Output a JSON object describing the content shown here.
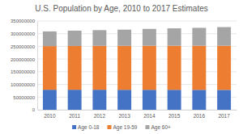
{
  "chart_data": {
    "type": "bar",
    "title": "U.S. Population by Age, 2010 to 2017 Estimates",
    "categories": [
      "2010",
      "2011",
      "2012",
      "2013",
      "2014",
      "2015",
      "2016",
      "2017"
    ],
    "series": [
      {
        "name": "Age 0-18",
        "color": "#4472c4",
        "values": [
          79000000,
          79000000,
          79000000,
          78800000,
          78800000,
          78700000,
          78600000,
          78500000
        ]
      },
      {
        "name": "Age 19-59",
        "color": "#ed7d31",
        "values": [
          172000000,
          172500000,
          173000000,
          173200000,
          173500000,
          173700000,
          173900000,
          174000000
        ]
      },
      {
        "name": "Age 60+",
        "color": "#a5a5a5",
        "values": [
          58000000,
          60500000,
          62000000,
          64000000,
          66500000,
          68600000,
          70500000,
          73500000
        ]
      }
    ],
    "stacked": true,
    "ylim": [
      0,
      350000000
    ],
    "yticks": [
      0,
      50000000,
      100000000,
      150000000,
      200000000,
      250000000,
      300000000,
      350000000
    ],
    "grid": true,
    "legend": "bottom"
  }
}
